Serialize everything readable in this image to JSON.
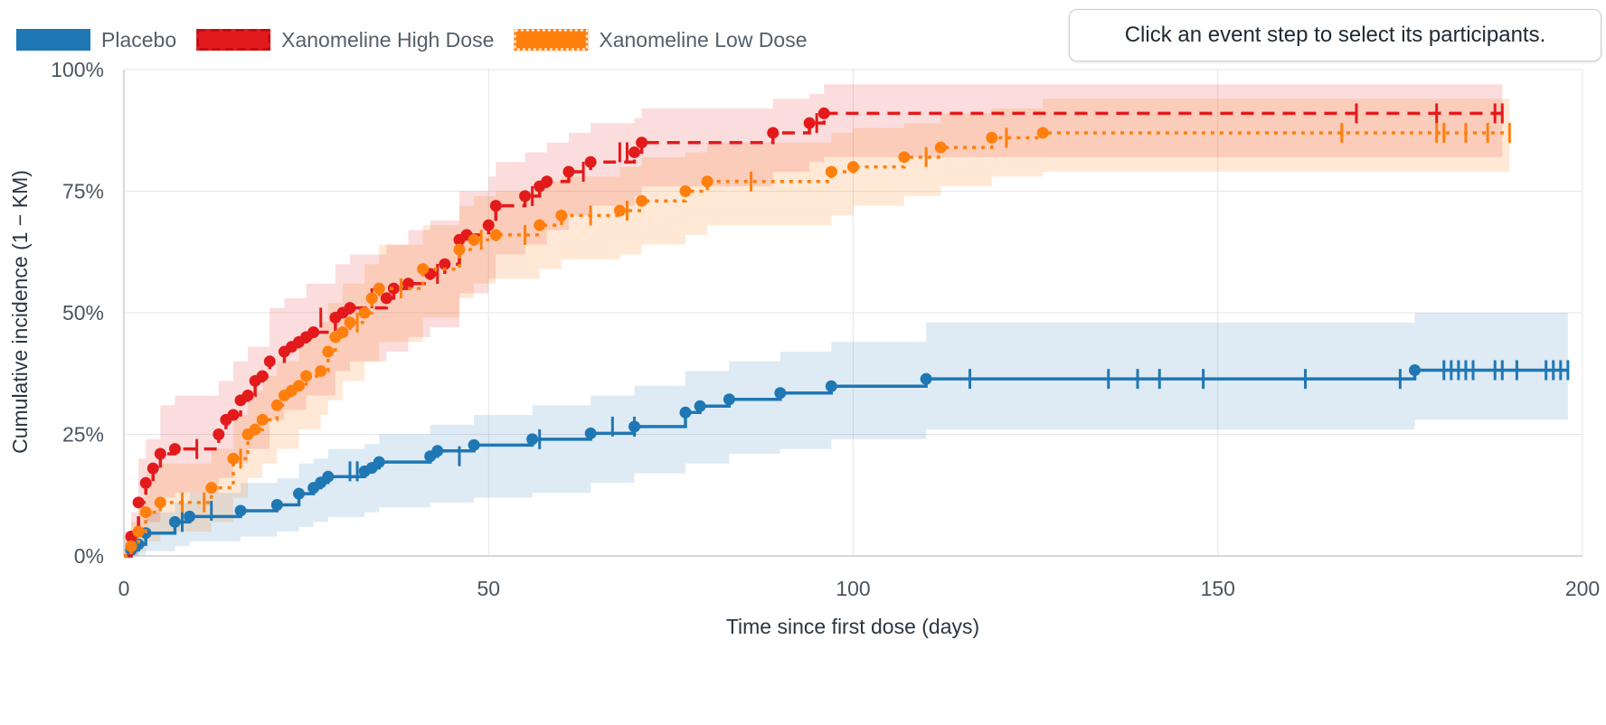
{
  "hint": "Click an event step to select its participants.",
  "chart_data": {
    "type": "line",
    "subtype": "kaplan-meier cumulative incidence with confidence bands",
    "xlabel": "Time since first dose (days)",
    "ylabel": "Cumulative incidence (1 − KM)",
    "xlim": [
      0,
      200
    ],
    "ylim": [
      0,
      1
    ],
    "x_ticks": [
      0,
      50,
      100,
      150,
      200
    ],
    "x_tick_labels": [
      "0",
      "50",
      "100",
      "150",
      "200"
    ],
    "y_ticks": [
      0,
      0.25,
      0.5,
      0.75,
      1
    ],
    "y_tick_labels": [
      "0%",
      "25%",
      "50%",
      "75%",
      "100%"
    ],
    "grid": true,
    "legend_position": "top-left",
    "series": [
      {
        "name": "Placebo",
        "color": "#1f77b4",
        "dash": "solid",
        "events": [
          [
            1,
            0.012
          ],
          [
            2,
            0.024
          ],
          [
            3,
            0.047
          ],
          [
            7,
            0.07
          ],
          [
            9,
            0.081
          ],
          [
            16,
            0.093
          ],
          [
            21,
            0.105
          ],
          [
            24,
            0.128
          ],
          [
            26,
            0.14
          ],
          [
            27,
            0.151
          ],
          [
            28,
            0.163
          ],
          [
            33,
            0.174
          ],
          [
            34,
            0.181
          ],
          [
            35,
            0.193
          ],
          [
            42,
            0.205
          ],
          [
            43,
            0.216
          ],
          [
            48,
            0.228
          ],
          [
            56,
            0.24
          ],
          [
            64,
            0.252
          ],
          [
            70,
            0.266
          ],
          [
            77,
            0.295
          ],
          [
            79,
            0.308
          ],
          [
            83,
            0.322
          ],
          [
            90,
            0.335
          ],
          [
            97,
            0.349
          ],
          [
            110,
            0.364
          ],
          [
            177,
            0.382
          ]
        ],
        "censored": [
          [
            8,
            0.07
          ],
          [
            12,
            0.093
          ],
          [
            31,
            0.174
          ],
          [
            32,
            0.174
          ],
          [
            46,
            0.205
          ],
          [
            57,
            0.24
          ],
          [
            67,
            0.266
          ],
          [
            70,
            0.266
          ],
          [
            116,
            0.364
          ],
          [
            135,
            0.364
          ],
          [
            139,
            0.364
          ],
          [
            142,
            0.364
          ],
          [
            148,
            0.364
          ],
          [
            162,
            0.364
          ],
          [
            175,
            0.364
          ],
          [
            181,
            0.382
          ],
          [
            182,
            0.382
          ],
          [
            183,
            0.382
          ],
          [
            184,
            0.382
          ],
          [
            185,
            0.382
          ],
          [
            188,
            0.382
          ],
          [
            189,
            0.382
          ],
          [
            191,
            0.382
          ],
          [
            195,
            0.382
          ],
          [
            196,
            0.382
          ],
          [
            197,
            0.382
          ],
          [
            198,
            0.382
          ]
        ],
        "ci": [
          [
            0,
            0.0,
            0.02
          ],
          [
            1,
            0.0,
            0.04
          ],
          [
            3,
            0.01,
            0.09
          ],
          [
            7,
            0.02,
            0.11
          ],
          [
            9,
            0.03,
            0.13
          ],
          [
            16,
            0.04,
            0.15
          ],
          [
            21,
            0.05,
            0.16
          ],
          [
            24,
            0.06,
            0.19
          ],
          [
            26,
            0.07,
            0.2
          ],
          [
            28,
            0.08,
            0.22
          ],
          [
            33,
            0.09,
            0.23
          ],
          [
            35,
            0.1,
            0.25
          ],
          [
            42,
            0.11,
            0.27
          ],
          [
            48,
            0.12,
            0.29
          ],
          [
            56,
            0.13,
            0.31
          ],
          [
            64,
            0.15,
            0.33
          ],
          [
            70,
            0.17,
            0.35
          ],
          [
            77,
            0.19,
            0.38
          ],
          [
            83,
            0.21,
            0.4
          ],
          [
            90,
            0.22,
            0.42
          ],
          [
            97,
            0.24,
            0.44
          ],
          [
            110,
            0.26,
            0.48
          ],
          [
            177,
            0.28,
            0.5
          ],
          [
            198,
            0.28,
            0.5
          ]
        ]
      },
      {
        "name": "Xanomeline High Dose",
        "color": "#e31a1c",
        "dash": "dashed",
        "events": [
          [
            1,
            0.04
          ],
          [
            2,
            0.11
          ],
          [
            3,
            0.15
          ],
          [
            4,
            0.18
          ],
          [
            5,
            0.21
          ],
          [
            7,
            0.22
          ],
          [
            13,
            0.25
          ],
          [
            14,
            0.28
          ],
          [
            15,
            0.29
          ],
          [
            16,
            0.32
          ],
          [
            17,
            0.33
          ],
          [
            18,
            0.36
          ],
          [
            19,
            0.37
          ],
          [
            20,
            0.4
          ],
          [
            22,
            0.42
          ],
          [
            23,
            0.43
          ],
          [
            24,
            0.44
          ],
          [
            25,
            0.45
          ],
          [
            26,
            0.46
          ],
          [
            29,
            0.49
          ],
          [
            30,
            0.5
          ],
          [
            31,
            0.51
          ],
          [
            36,
            0.53
          ],
          [
            37,
            0.55
          ],
          [
            39,
            0.56
          ],
          [
            42,
            0.58
          ],
          [
            44,
            0.6
          ],
          [
            46,
            0.65
          ],
          [
            47,
            0.66
          ],
          [
            50,
            0.68
          ],
          [
            51,
            0.72
          ],
          [
            55,
            0.74
          ],
          [
            57,
            0.76
          ],
          [
            58,
            0.77
          ],
          [
            61,
            0.79
          ],
          [
            64,
            0.81
          ],
          [
            70,
            0.83
          ],
          [
            71,
            0.85
          ],
          [
            89,
            0.87
          ],
          [
            94,
            0.89
          ],
          [
            96,
            0.91
          ]
        ],
        "censored": [
          [
            10,
            0.22
          ],
          [
            27,
            0.49
          ],
          [
            34,
            0.53
          ],
          [
            43,
            0.58
          ],
          [
            56,
            0.74
          ],
          [
            63,
            0.79
          ],
          [
            68,
            0.83
          ],
          [
            69,
            0.83
          ],
          [
            95,
            0.89
          ],
          [
            169,
            0.91
          ],
          [
            180,
            0.91
          ],
          [
            188,
            0.91
          ],
          [
            189,
            0.91
          ]
        ],
        "ci": [
          [
            0,
            0.0,
            0.05
          ],
          [
            1,
            0.0,
            0.09
          ],
          [
            2,
            0.04,
            0.2
          ],
          [
            3,
            0.07,
            0.24
          ],
          [
            5,
            0.12,
            0.31
          ],
          [
            7,
            0.13,
            0.33
          ],
          [
            13,
            0.16,
            0.36
          ],
          [
            15,
            0.19,
            0.4
          ],
          [
            17,
            0.22,
            0.43
          ],
          [
            20,
            0.28,
            0.51
          ],
          [
            22,
            0.3,
            0.53
          ],
          [
            25,
            0.33,
            0.56
          ],
          [
            29,
            0.38,
            0.6
          ],
          [
            31,
            0.4,
            0.62
          ],
          [
            36,
            0.42,
            0.64
          ],
          [
            39,
            0.45,
            0.67
          ],
          [
            42,
            0.47,
            0.69
          ],
          [
            46,
            0.54,
            0.75
          ],
          [
            50,
            0.57,
            0.78
          ],
          [
            51,
            0.62,
            0.81
          ],
          [
            55,
            0.64,
            0.83
          ],
          [
            58,
            0.67,
            0.85
          ],
          [
            61,
            0.7,
            0.87
          ],
          [
            64,
            0.72,
            0.89
          ],
          [
            70,
            0.74,
            0.9
          ],
          [
            71,
            0.76,
            0.92
          ],
          [
            89,
            0.79,
            0.94
          ],
          [
            94,
            0.81,
            0.95
          ],
          [
            96,
            0.82,
            0.97
          ],
          [
            189,
            0.82,
            0.97
          ]
        ]
      },
      {
        "name": "Xanomeline Low Dose",
        "color": "#ff7f0e",
        "dash": "dotted",
        "events": [
          [
            1,
            0.02
          ],
          [
            2,
            0.05
          ],
          [
            3,
            0.09
          ],
          [
            5,
            0.11
          ],
          [
            12,
            0.14
          ],
          [
            15,
            0.2
          ],
          [
            17,
            0.25
          ],
          [
            18,
            0.26
          ],
          [
            19,
            0.28
          ],
          [
            21,
            0.31
          ],
          [
            22,
            0.33
          ],
          [
            23,
            0.34
          ],
          [
            24,
            0.35
          ],
          [
            25,
            0.37
          ],
          [
            27,
            0.38
          ],
          [
            28,
            0.42
          ],
          [
            29,
            0.45
          ],
          [
            30,
            0.46
          ],
          [
            31,
            0.48
          ],
          [
            33,
            0.5
          ],
          [
            34,
            0.53
          ],
          [
            35,
            0.55
          ],
          [
            41,
            0.59
          ],
          [
            46,
            0.63
          ],
          [
            48,
            0.65
          ],
          [
            51,
            0.66
          ],
          [
            57,
            0.68
          ],
          [
            60,
            0.7
          ],
          [
            68,
            0.71
          ],
          [
            71,
            0.73
          ],
          [
            77,
            0.75
          ],
          [
            80,
            0.77
          ],
          [
            97,
            0.79
          ],
          [
            100,
            0.8
          ],
          [
            107,
            0.82
          ],
          [
            112,
            0.84
          ],
          [
            119,
            0.86
          ],
          [
            126,
            0.87
          ]
        ],
        "censored": [
          [
            8,
            0.11
          ],
          [
            11,
            0.11
          ],
          [
            16,
            0.2
          ],
          [
            32,
            0.48
          ],
          [
            38,
            0.55
          ],
          [
            49,
            0.65
          ],
          [
            55,
            0.66
          ],
          [
            64,
            0.7
          ],
          [
            69,
            0.71
          ],
          [
            86,
            0.77
          ],
          [
            110,
            0.82
          ],
          [
            121,
            0.86
          ],
          [
            167,
            0.87
          ],
          [
            180,
            0.87
          ],
          [
            181,
            0.87
          ],
          [
            184,
            0.87
          ],
          [
            187,
            0.87
          ],
          [
            190,
            0.87
          ]
        ],
        "ci": [
          [
            0,
            0.0,
            0.04
          ],
          [
            1,
            0.0,
            0.07
          ],
          [
            2,
            0.01,
            0.12
          ],
          [
            3,
            0.03,
            0.17
          ],
          [
            5,
            0.05,
            0.19
          ],
          [
            12,
            0.07,
            0.22
          ],
          [
            15,
            0.12,
            0.29
          ],
          [
            17,
            0.16,
            0.34
          ],
          [
            19,
            0.19,
            0.37
          ],
          [
            21,
            0.22,
            0.4
          ],
          [
            24,
            0.26,
            0.45
          ],
          [
            27,
            0.29,
            0.48
          ],
          [
            28,
            0.32,
            0.52
          ],
          [
            30,
            0.36,
            0.56
          ],
          [
            33,
            0.4,
            0.6
          ],
          [
            35,
            0.44,
            0.64
          ],
          [
            41,
            0.49,
            0.68
          ],
          [
            46,
            0.53,
            0.72
          ],
          [
            48,
            0.56,
            0.74
          ],
          [
            51,
            0.57,
            0.75
          ],
          [
            57,
            0.59,
            0.77
          ],
          [
            60,
            0.61,
            0.78
          ],
          [
            68,
            0.62,
            0.8
          ],
          [
            71,
            0.64,
            0.82
          ],
          [
            77,
            0.66,
            0.83
          ],
          [
            80,
            0.68,
            0.85
          ],
          [
            97,
            0.7,
            0.87
          ],
          [
            100,
            0.72,
            0.88
          ],
          [
            107,
            0.74,
            0.89
          ],
          [
            112,
            0.76,
            0.91
          ],
          [
            119,
            0.78,
            0.92
          ],
          [
            126,
            0.79,
            0.94
          ],
          [
            190,
            0.79,
            0.94
          ]
        ]
      }
    ]
  }
}
